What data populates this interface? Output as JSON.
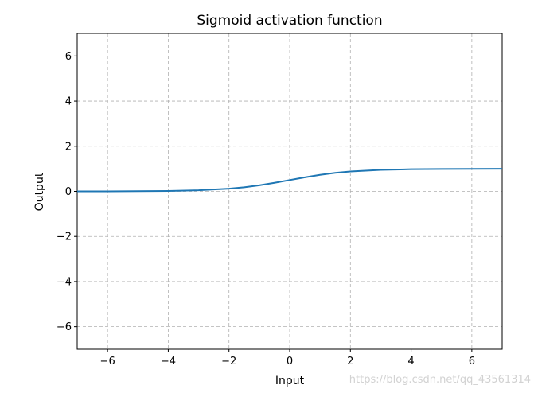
{
  "chart_data": {
    "type": "line",
    "title": "Sigmoid activation function",
    "xlabel": "Input",
    "ylabel": "Output",
    "xlim": [
      -7,
      7
    ],
    "ylim": [
      -7,
      7
    ],
    "xticks": [
      -6,
      -4,
      -2,
      0,
      2,
      4,
      6
    ],
    "yticks": [
      -6,
      -4,
      -2,
      0,
      2,
      4,
      6
    ],
    "grid": true,
    "series": [
      {
        "color": "#1f77b4",
        "x": [
          -7,
          -6,
          -5,
          -4,
          -3,
          -2,
          -1.5,
          -1,
          -0.5,
          0,
          0.5,
          1,
          1.5,
          2,
          3,
          4,
          5,
          6,
          7
        ],
        "y": [
          0.001,
          0.002,
          0.007,
          0.018,
          0.047,
          0.119,
          0.182,
          0.269,
          0.378,
          0.5,
          0.622,
          0.731,
          0.818,
          0.881,
          0.953,
          0.982,
          0.993,
          0.998,
          0.999
        ]
      }
    ]
  },
  "watermark": "https://blog.csdn.net/qq_43561314"
}
